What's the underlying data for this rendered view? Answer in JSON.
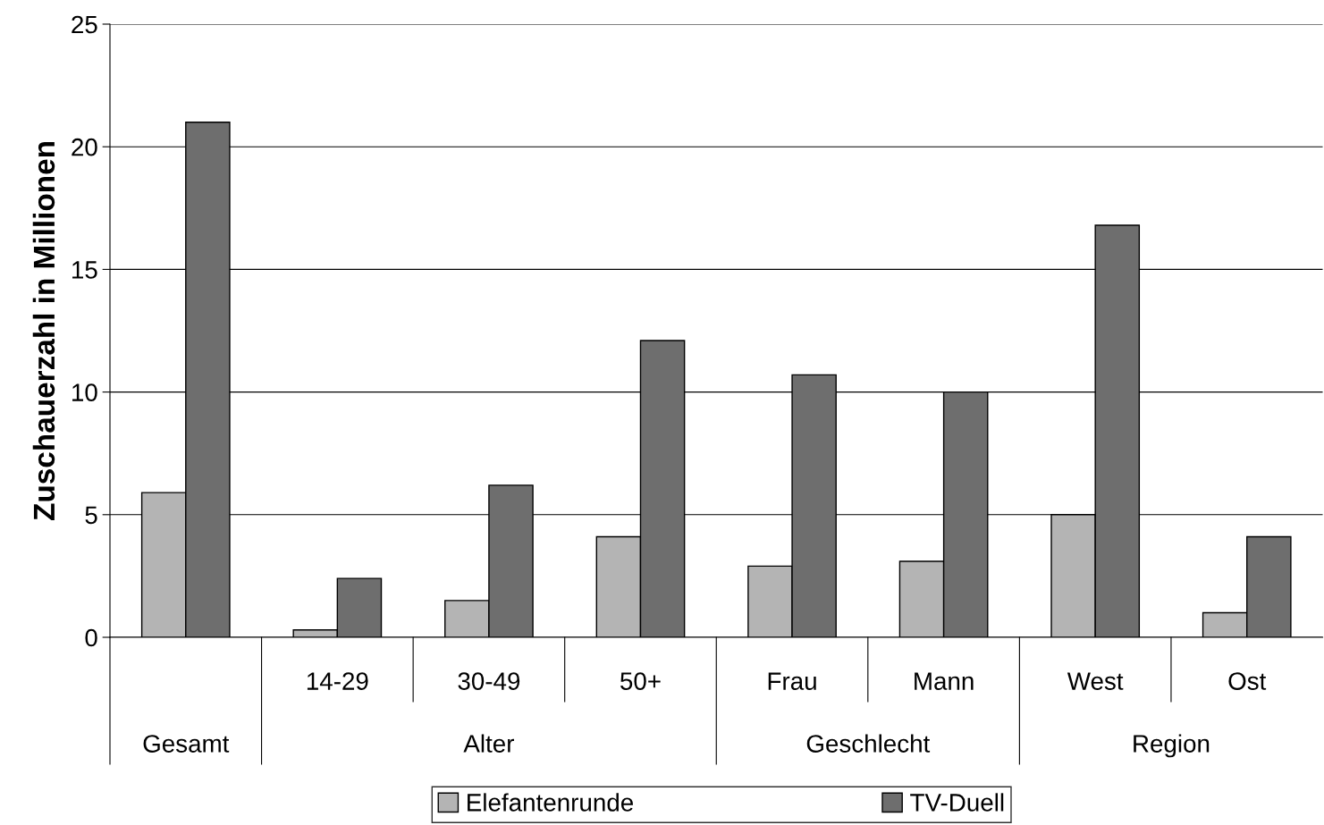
{
  "chart_data": {
    "type": "bar",
    "ylabel": "Zuschauerzahl in Millionen",
    "categories": [
      null,
      "14-29",
      "30-49",
      "50+",
      "Frau",
      "Mann",
      "West",
      "Ost"
    ],
    "series": [
      {
        "name": "Elefantenrunde",
        "color": "#b4b4b4",
        "values": [
          5.9,
          0.3,
          1.5,
          4.1,
          2.9,
          3.1,
          5.0,
          1.0
        ]
      },
      {
        "name": "TV-Duell",
        "color": "#6e6e6e",
        "values": [
          21.0,
          2.4,
          6.2,
          12.1,
          10.7,
          10.0,
          16.8,
          4.1
        ]
      }
    ],
    "annotations": [
      "Gesamt",
      "Alter",
      "Geschlecht",
      "Region"
    ],
    "ylim": [
      0,
      25
    ],
    "yticks": [
      0,
      5,
      10,
      15,
      20,
      25
    ],
    "grid": "y",
    "legend": "bottom"
  }
}
